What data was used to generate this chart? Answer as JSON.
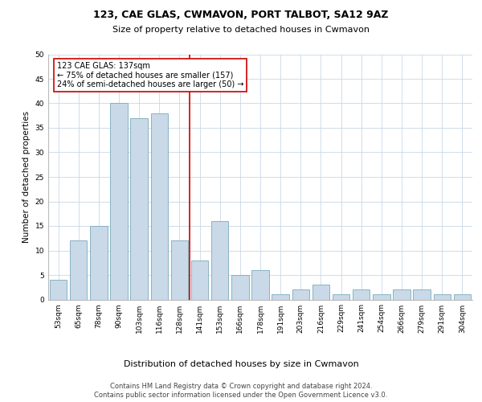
{
  "title": "123, CAE GLAS, CWMAVON, PORT TALBOT, SA12 9AZ",
  "subtitle": "Size of property relative to detached houses in Cwmavon",
  "xlabel_bottom": "Distribution of detached houses by size in Cwmavon",
  "ylabel": "Number of detached properties",
  "categories": [
    "53sqm",
    "65sqm",
    "78sqm",
    "90sqm",
    "103sqm",
    "116sqm",
    "128sqm",
    "141sqm",
    "153sqm",
    "166sqm",
    "178sqm",
    "191sqm",
    "203sqm",
    "216sqm",
    "229sqm",
    "241sqm",
    "254sqm",
    "266sqm",
    "279sqm",
    "291sqm",
    "304sqm"
  ],
  "values": [
    4,
    12,
    15,
    40,
    37,
    38,
    12,
    8,
    16,
    5,
    6,
    1,
    2,
    3,
    1,
    2,
    1,
    2,
    2,
    1,
    1
  ],
  "bar_color": "#c9d9e8",
  "bar_edge_color": "#7aaabb",
  "vline_x_idx": 6.5,
  "vline_color": "#cc0000",
  "annotation_text": "123 CAE GLAS: 137sqm\n← 75% of detached houses are smaller (157)\n24% of semi-detached houses are larger (50) →",
  "annotation_box_color": "#ffffff",
  "annotation_box_edge": "#cc0000",
  "ylim": [
    0,
    50
  ],
  "yticks": [
    0,
    5,
    10,
    15,
    20,
    25,
    30,
    35,
    40,
    45,
    50
  ],
  "footer_line1": "Contains HM Land Registry data © Crown copyright and database right 2024.",
  "footer_line2": "Contains public sector information licensed under the Open Government Licence v3.0.",
  "bg_color": "#ffffff",
  "grid_color": "#c8d8e8",
  "title_fontsize": 9,
  "subtitle_fontsize": 8,
  "tick_fontsize": 6.5,
  "ylabel_fontsize": 7.5,
  "annotation_fontsize": 7,
  "footer_fontsize": 6,
  "xlabel_bottom_fontsize": 8
}
